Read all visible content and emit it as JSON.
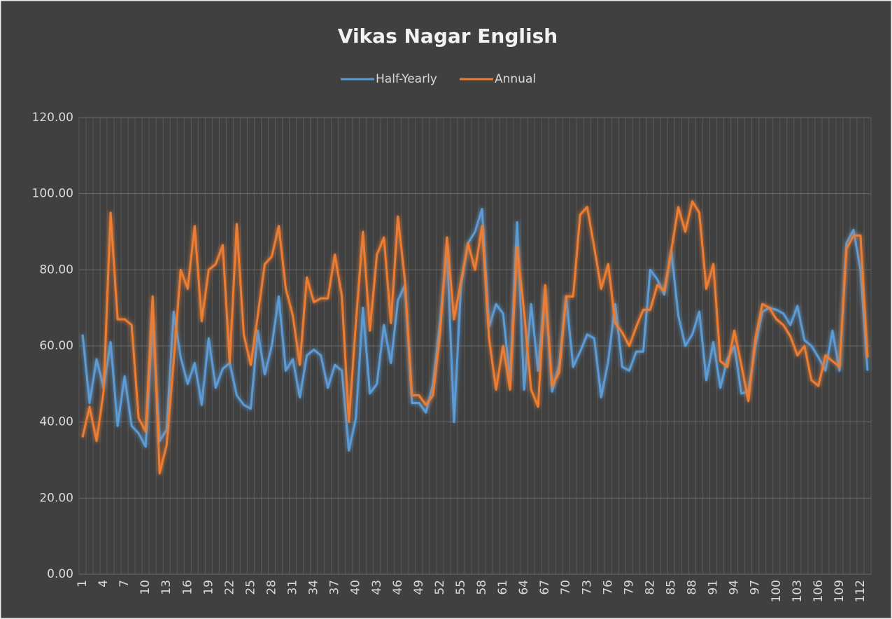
{
  "chart_data": {
    "type": "line",
    "title": "Vikas Nagar English",
    "categories": [
      "1",
      null,
      null,
      "4",
      null,
      null,
      "7",
      null,
      null,
      "10",
      null,
      null,
      "13",
      null,
      null,
      "16",
      null,
      null,
      "19",
      null,
      null,
      "22",
      null,
      null,
      "25",
      null,
      null,
      "28",
      null,
      null,
      "31",
      null,
      null,
      "34",
      null,
      null,
      "37",
      null,
      null,
      "40",
      null,
      null,
      "43",
      null,
      null,
      "46",
      null,
      null,
      "49",
      null,
      null,
      "52",
      null,
      null,
      "55",
      null,
      null,
      "58",
      null,
      null,
      "61",
      null,
      null,
      "64",
      null,
      null,
      "67",
      null,
      null,
      "70",
      null,
      null,
      "73",
      null,
      null,
      "76",
      null,
      null,
      "79",
      null,
      null,
      "82",
      null,
      null,
      "85",
      null,
      null,
      "88",
      null,
      null,
      "91",
      null,
      null,
      "94",
      null,
      null,
      "97",
      null,
      null,
      "100",
      null,
      null,
      "103",
      null,
      null,
      "106",
      null,
      null,
      "109",
      null,
      null,
      "112",
      null
    ],
    "series": [
      {
        "name": "Half-Yearly",
        "color": "#5b9bd5",
        "values": [
          63,
          45,
          56.5,
          49,
          61,
          39,
          52,
          39,
          37,
          33.5,
          67,
          35,
          38,
          69,
          57,
          50,
          55.5,
          44.5,
          62,
          49,
          54,
          55.5,
          47,
          44.5,
          43.5,
          64,
          52.5,
          60,
          73,
          53.5,
          56.5,
          46.5,
          57.5,
          59,
          57.5,
          49,
          55,
          53.5,
          32.5,
          41,
          70,
          47.5,
          50,
          65.5,
          55.5,
          72,
          76,
          45,
          45,
          42.5,
          50,
          66,
          86,
          40,
          76,
          87,
          90,
          96,
          65,
          71,
          68.5,
          51,
          92.5,
          48.5,
          71,
          53.5,
          75,
          48,
          55,
          73,
          54.5,
          58.5,
          63,
          62,
          46.5,
          56,
          71,
          54.5,
          53.5,
          58.5,
          58.5,
          80,
          77.5,
          73.5,
          85,
          68,
          60,
          63,
          69,
          51,
          61,
          49,
          56.5,
          60,
          47.5,
          48,
          60,
          69,
          70,
          69.5,
          68.5,
          65.5,
          70.5,
          61.5,
          60,
          57,
          53.5,
          64,
          53.5,
          87,
          90.5,
          80,
          53.5
        ]
      },
      {
        "name": "Annual",
        "color": "#ed7d31",
        "values": [
          36,
          44,
          35,
          48,
          95,
          67,
          67,
          65.5,
          41,
          37.5,
          73,
          26.5,
          34,
          56,
          80,
          75,
          91.5,
          66.5,
          80,
          81.5,
          86.5,
          55.5,
          92,
          63,
          55,
          68,
          81.5,
          83.5,
          91.5,
          75,
          68,
          55,
          78,
          71.5,
          72.5,
          72.5,
          84,
          73,
          40,
          66,
          90,
          64,
          84,
          88.5,
          66,
          94,
          77,
          47,
          47,
          44.5,
          47,
          63,
          88.5,
          67,
          77,
          87,
          80,
          91.5,
          62,
          48.5,
          60,
          48.5,
          86,
          69,
          48.5,
          44,
          76,
          49.5,
          53,
          73,
          73,
          94.5,
          96.5,
          86,
          75,
          81.5,
          66,
          63.5,
          60,
          65,
          69.5,
          69.5,
          76,
          74.5,
          85,
          96.5,
          90,
          98,
          95,
          75,
          81.5,
          56,
          54.5,
          64,
          55,
          45.5,
          62,
          71,
          70,
          67,
          65.5,
          62.5,
          57.5,
          60,
          51,
          49.5,
          57.5,
          56,
          54.5,
          85.5,
          89,
          89,
          57
        ]
      }
    ],
    "ylim": [
      0,
      120
    ],
    "yticks": [
      {
        "value": 0,
        "label": "0.00"
      },
      {
        "value": 20,
        "label": "20.00"
      },
      {
        "value": 40,
        "label": "40.00"
      },
      {
        "value": 60,
        "label": "60.00"
      },
      {
        "value": 80,
        "label": "80.00"
      },
      {
        "value": 100,
        "label": "100.00"
      },
      {
        "value": 120,
        "label": "120.00"
      }
    ],
    "grid": true,
    "legend": "top"
  }
}
